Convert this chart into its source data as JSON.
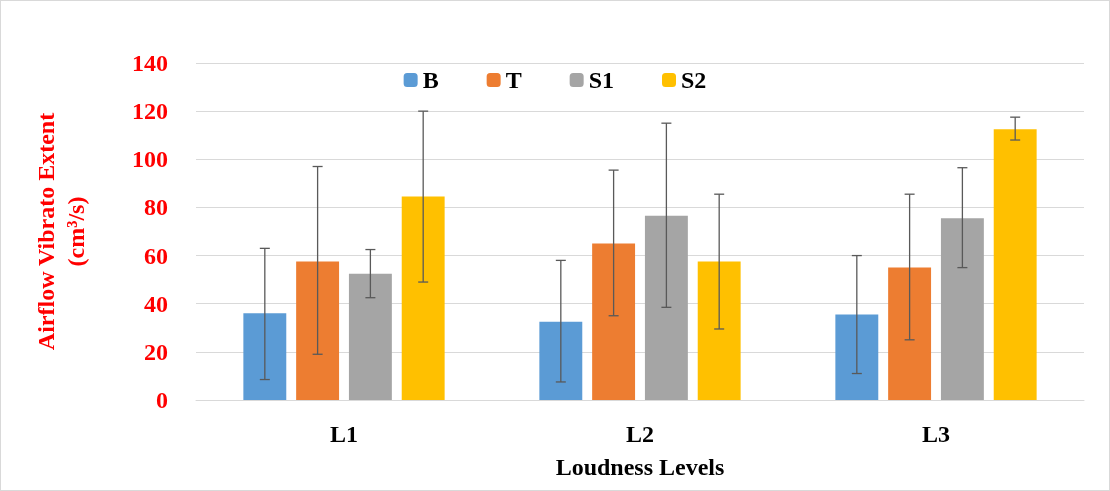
{
  "chart_data": {
    "type": "bar",
    "xlabel": "Loudness Levels",
    "ylabel": "Airflow Vibrato Extent\n(cm³/s)",
    "categories": [
      "L1",
      "L2",
      "L3"
    ],
    "series": [
      {
        "name": "B",
        "color": "#5b9bd5",
        "values": [
          36,
          32.5,
          35.5
        ],
        "errors": [
          [
            8.5,
            63
          ],
          [
            7.5,
            58
          ],
          [
            11,
            60
          ]
        ]
      },
      {
        "name": "T",
        "color": "#ed7d31",
        "values": [
          57.5,
          65,
          55
        ],
        "errors": [
          [
            19,
            97
          ],
          [
            35,
            95.5
          ],
          [
            25,
            85.5
          ]
        ]
      },
      {
        "name": "S1",
        "color": "#a5a5a5",
        "values": [
          52.5,
          76.5,
          75.5
        ],
        "errors": [
          [
            42.5,
            62.5
          ],
          [
            38.5,
            115
          ],
          [
            55,
            96.5
          ]
        ]
      },
      {
        "name": "S2",
        "color": "#ffc000",
        "values": [
          84.5,
          57.5,
          112.5
        ],
        "errors": [
          [
            49,
            120
          ],
          [
            29.5,
            85.5
          ],
          [
            108,
            117.5
          ]
        ]
      }
    ],
    "ylim": [
      0,
      140
    ],
    "yticks": [
      0,
      20,
      40,
      60,
      80,
      100,
      120,
      140
    ],
    "grid": "y",
    "legend": "top"
  }
}
